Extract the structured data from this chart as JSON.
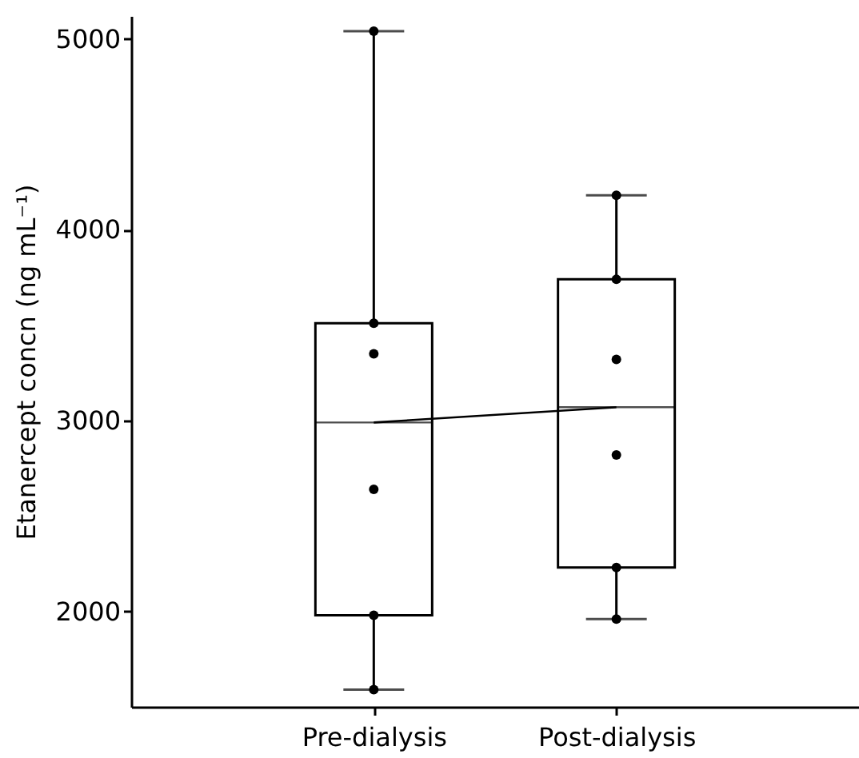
{
  "chart_data": {
    "type": "box",
    "ylabel": "Etanercept concn (ng mL⁻¹)",
    "categories": [
      "Pre-dialysis",
      "Post-dialysis"
    ],
    "boxes": [
      {
        "low": 1590,
        "q1": 1980,
        "median": 2990,
        "q3": 3510,
        "high": 5040
      },
      {
        "low": 1960,
        "q1": 2230,
        "median": 3070,
        "q3": 3740,
        "high": 4180
      }
    ],
    "series": [
      {
        "type": "line",
        "color": "#000000",
        "values": [
          2990,
          3070
        ]
      },
      {
        "type": "scatter",
        "color": "#000000",
        "x": [
          "Pre-dialysis",
          "Pre-dialysis",
          "Pre-dialysis",
          "Pre-dialysis",
          "Pre-dialysis",
          "Pre-dialysis",
          "Post-dialysis",
          "Post-dialysis",
          "Post-dialysis",
          "Post-dialysis",
          "Post-dialysis",
          "Post-dialysis"
        ],
        "values": [
          5040,
          3510,
          3350,
          2640,
          1980,
          1590,
          4180,
          3740,
          3320,
          2820,
          2230,
          1960
        ]
      }
    ],
    "ylim": [
      1500,
      5120
    ],
    "yticks": [
      2000,
      3000,
      4000,
      5000
    ],
    "grid": false
  }
}
